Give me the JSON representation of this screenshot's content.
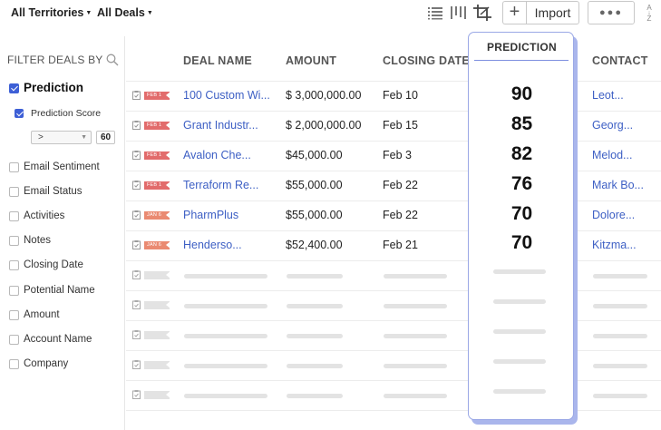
{
  "toolbar": {
    "territory_label": "All Territories",
    "deals_label": "All Deals",
    "import_label": "Import",
    "more_label": "●●●",
    "sort_label_a": "A",
    "sort_label_z": "Z"
  },
  "sidebar": {
    "heading": "FILTER DEALS BY",
    "prediction_label": "Prediction",
    "prediction_score_label": "Prediction Score",
    "operator_value": ">",
    "score_value": "60",
    "filters": [
      "Email Sentiment",
      "Email Status",
      "Activities",
      "Notes",
      "Closing Date",
      "Potential Name",
      "Amount",
      "Account Name",
      "Company"
    ]
  },
  "table": {
    "headers": {
      "deal_name": "DEAL NAME",
      "amount": "AMOUNT",
      "closing_date": "CLOSING DATE",
      "prediction": "PREDICTION",
      "contact": "CONTACT"
    },
    "rows": [
      {
        "tag": "FEB 1",
        "deal_name": "100 Custom Wi...",
        "amount": "$ 3,000,000.00",
        "closing_date": "Feb 10",
        "prediction": "90",
        "contact": "Leot..."
      },
      {
        "tag": "FEB 1",
        "deal_name": "Grant Industr...",
        "amount": "$ 2,000,000.00",
        "closing_date": "Feb 15",
        "prediction": "85",
        "contact": "Georg..."
      },
      {
        "tag": "FEB 1",
        "deal_name": "Avalon Che...",
        "amount": "$45,000.00",
        "closing_date": "Feb 3",
        "prediction": "82",
        "contact": "Melod..."
      },
      {
        "tag": "FEB 1",
        "deal_name": "Terraform Re...",
        "amount": "$55,000.00",
        "closing_date": "Feb 22",
        "prediction": "76",
        "contact": "Mark Bo..."
      },
      {
        "tag": "JAN 6",
        "deal_name": "PharmPlus",
        "amount": "$55,000.00",
        "closing_date": "Feb 22",
        "prediction": "70",
        "contact": "Dolore..."
      },
      {
        "tag": "JAN 6",
        "deal_name": "Henderso...",
        "amount": "$52,400.00",
        "closing_date": "Feb 21",
        "prediction": "70",
        "contact": "Kitzma..."
      }
    ]
  }
}
